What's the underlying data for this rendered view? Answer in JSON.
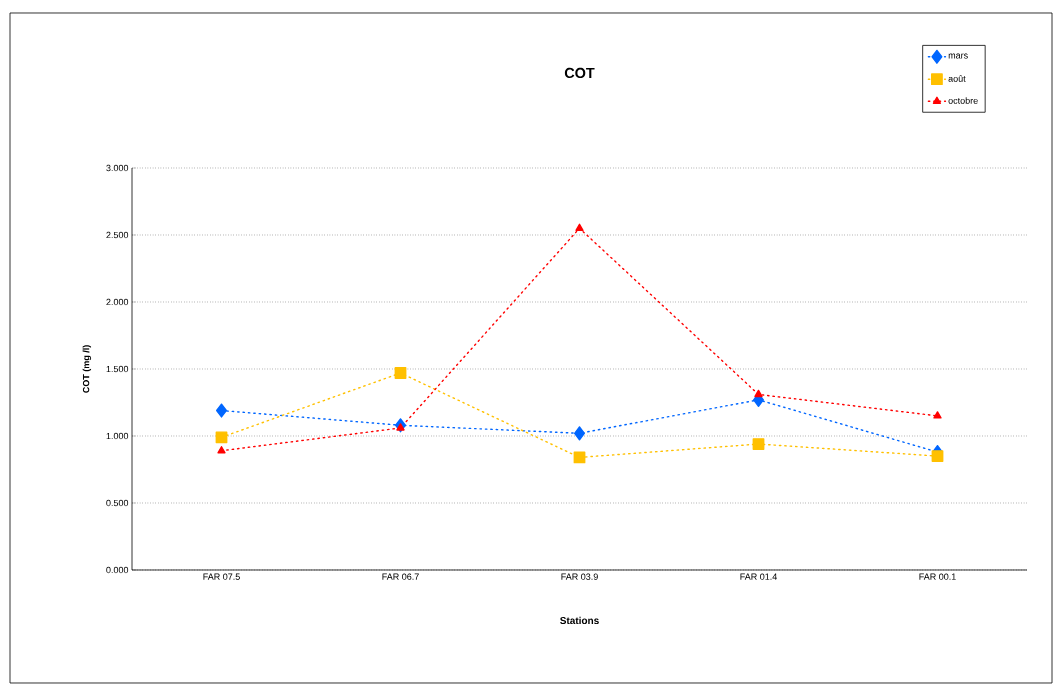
{
  "chart_data": {
    "type": "line",
    "title": "COT",
    "xlabel": "Stations",
    "ylabel": "COT (mg /l)",
    "categories": [
      "FAR 07.5",
      "FAR 06.7",
      "FAR 03.9",
      "FAR 01.4",
      "FAR 00.1"
    ],
    "series": [
      {
        "name": "mars",
        "color": "#0066ff",
        "marker": "diamond",
        "values": [
          1.19,
          1.08,
          1.02,
          1.27,
          0.88
        ]
      },
      {
        "name": "août",
        "color": "#ffc000",
        "marker": "square",
        "values": [
          0.99,
          1.47,
          0.84,
          0.94,
          0.85
        ]
      },
      {
        "name": "octobre",
        "color": "#ff0000",
        "marker": "triangle",
        "values": [
          0.89,
          1.06,
          2.55,
          1.31,
          1.15
        ]
      }
    ],
    "line_style": "dotted",
    "ylim": [
      0,
      3
    ],
    "yticks": [
      {
        "value": 0,
        "label": "0.000"
      },
      {
        "value": 0.5,
        "label": "0.500"
      },
      {
        "value": 1,
        "label": "1.000"
      },
      {
        "value": 1.5,
        "label": "1.500"
      },
      {
        "value": 2,
        "label": "2.000"
      },
      {
        "value": 2.5,
        "label": "2.500"
      },
      {
        "value": 3,
        "label": "3.000"
      }
    ],
    "grid": "y",
    "legend": "top right"
  }
}
